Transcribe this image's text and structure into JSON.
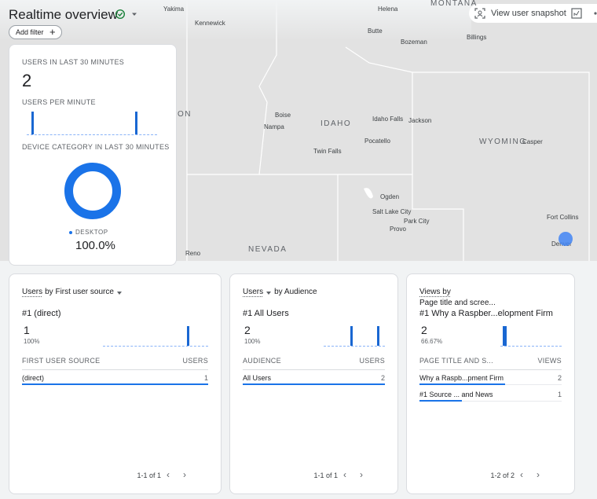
{
  "header": {
    "title": "Realtime overview",
    "add_filter": "Add filter",
    "snapshot": "View user snapshot"
  },
  "map": {
    "labels": [
      "Yakima",
      "Kennewick",
      "Helena",
      "MONTANA",
      "Butte",
      "Bozeman",
      "Billings",
      "ON",
      "Boise",
      "Nampa",
      "IDAHO",
      "Idaho Falls",
      "Jackson",
      "Pocatello",
      "Twin Falls",
      "WYOMING",
      "Casper",
      "Ogden",
      "Salt Lake City",
      "Park City",
      "Provo",
      "Fort Collins",
      "Denver",
      "Reno",
      "NEVADA"
    ]
  },
  "summary": {
    "users_label": "USERS IN LAST 30 MINUTES",
    "users": 2,
    "per_minute_label": "USERS PER MINUTE",
    "per_minute": [
      0,
      1,
      0,
      0,
      0,
      0,
      0,
      0,
      0,
      0,
      0,
      0,
      0,
      0,
      0,
      0,
      0,
      0,
      0,
      0,
      0,
      0,
      0,
      0,
      0,
      1,
      0,
      0,
      0,
      0
    ],
    "device_label": "DEVICE CATEGORY IN LAST 30 MINUTES",
    "device": "DESKTOP",
    "device_share": 100,
    "device_share_label": "100.0%"
  },
  "cards": [
    {
      "title": [
        "Users",
        "by First user source"
      ],
      "top": "#1  (direct)",
      "top_value": 1,
      "top_share": "100%",
      "spark": [
        0,
        0,
        0,
        0,
        0,
        0,
        0,
        0,
        0,
        0,
        0,
        0,
        0,
        0,
        0,
        0,
        0,
        0,
        0,
        0,
        0,
        0,
        0,
        0,
        1,
        0,
        0,
        0,
        0,
        0
      ],
      "columns": [
        "FIRST USER SOURCE",
        "USERS"
      ],
      "rows": [
        [
          "(direct)",
          1
        ]
      ],
      "pagination": "1-1 of 1"
    },
    {
      "title": [
        "Users",
        "by Audience"
      ],
      "top": "#1  All Users",
      "top_value": 2,
      "top_share": "100%",
      "spark": [
        0,
        0,
        0,
        0,
        0,
        0,
        0,
        0,
        0,
        0,
        0,
        0,
        0,
        1,
        0,
        0,
        0,
        0,
        0,
        0,
        0,
        0,
        0,
        0,
        0,
        0,
        1,
        0,
        0,
        0
      ],
      "columns": [
        "AUDIENCE",
        "USERS"
      ],
      "rows": [
        [
          "All Users",
          2
        ]
      ],
      "pagination": "1-1 of 1"
    },
    {
      "title": [
        "Views by",
        "Page title and scree..."
      ],
      "top": "#1  Why a Raspber...elopment Firm",
      "top_value": 2,
      "top_share": "66.67%",
      "spark": [
        0,
        1,
        1,
        0,
        0,
        0,
        0,
        0,
        0,
        0,
        0,
        0,
        0,
        0,
        0,
        0,
        0,
        0,
        0,
        0,
        0,
        0,
        0,
        0,
        0,
        0,
        0,
        0,
        0,
        0
      ],
      "columns": [
        "PAGE TITLE AND S...",
        "VIEWS"
      ],
      "rows": [
        [
          "Why a Raspb...pment Firm",
          2
        ],
        [
          "#1 Source ... and News",
          1
        ]
      ],
      "pagination": "1-2 of 2"
    }
  ]
}
